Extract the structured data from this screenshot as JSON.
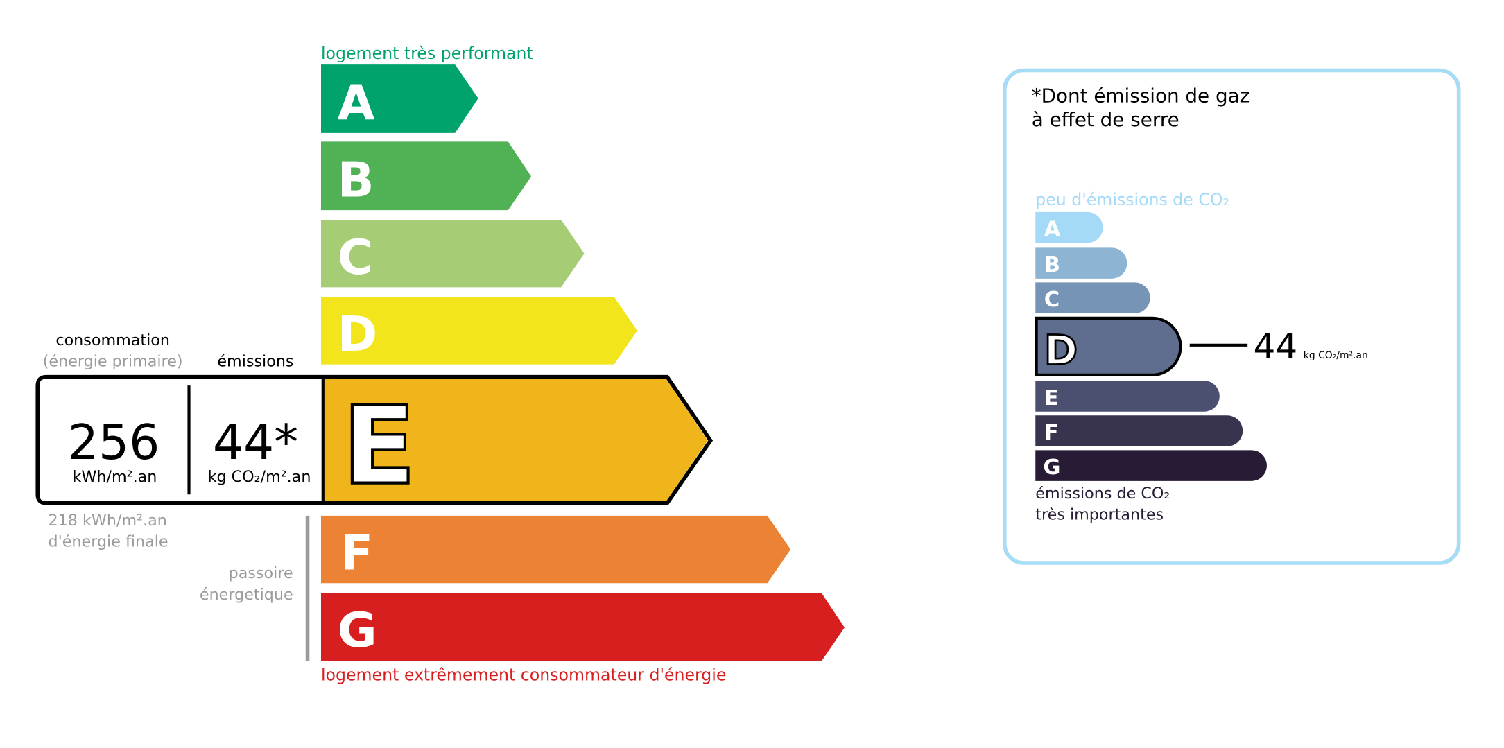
{
  "energy": {
    "top_label": "logement très performant",
    "bottom_label": "logement extrêmement consommateur d'énergie",
    "classes": [
      {
        "letter": "A",
        "color": "#00a36c"
      },
      {
        "letter": "B",
        "color": "#51b155"
      },
      {
        "letter": "C",
        "color": "#a6cc75"
      },
      {
        "letter": "D",
        "color": "#f2e51c"
      },
      {
        "letter": "E",
        "color": "#f0b51b"
      },
      {
        "letter": "F",
        "color": "#eb8234"
      },
      {
        "letter": "G",
        "color": "#d71f20"
      }
    ],
    "current_class": "E",
    "consumption_header": "consommation",
    "consumption_sub": "(énergie primaire)",
    "emissions_header": "émissions",
    "consumption_value": "256",
    "consumption_unit": "kWh/m².an",
    "emissions_value": "44*",
    "emissions_unit": "kg CO₂/m².an",
    "final_energy_line1": "218 kWh/m².an",
    "final_energy_line2": "d'énergie finale",
    "passoire_line1": "passoire",
    "passoire_line2": "énergetique"
  },
  "ghg": {
    "title_line1": "*Dont émission de gaz",
    "title_line2": "à effet de serre",
    "top_label": "peu d'émissions de CO₂",
    "bottom_label_line1": "émissions de CO₂",
    "bottom_label_line2": "très importantes",
    "classes": [
      {
        "letter": "A",
        "color": "#a4daf7"
      },
      {
        "letter": "B",
        "color": "#8db4d3"
      },
      {
        "letter": "C",
        "color": "#7694b5"
      },
      {
        "letter": "D",
        "color": "#5f6e8f"
      },
      {
        "letter": "E",
        "color": "#4c5070"
      },
      {
        "letter": "F",
        "color": "#38344f"
      },
      {
        "letter": "G",
        "color": "#281b35"
      }
    ],
    "current_class": "D",
    "value": "44",
    "unit": "kg CO₂/m².an",
    "frame_color": "#a6dcf5"
  }
}
